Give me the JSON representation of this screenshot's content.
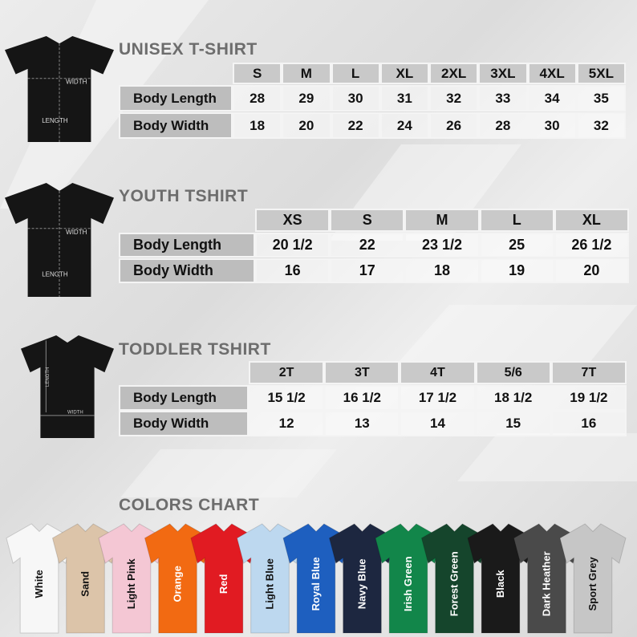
{
  "sections": [
    {
      "title": "UNISEX T-SHIRT",
      "shirt_labels": [
        "WIDTH",
        "LENGTH"
      ],
      "sizes": [
        "S",
        "M",
        "L",
        "XL",
        "2XL",
        "3XL",
        "4XL",
        "5XL"
      ],
      "rows": [
        {
          "label": "Body Length",
          "values": [
            "28",
            "29",
            "30",
            "31",
            "32",
            "33",
            "34",
            "35"
          ]
        },
        {
          "label": "Body Width",
          "values": [
            "18",
            "20",
            "22",
            "24",
            "26",
            "28",
            "30",
            "32"
          ]
        }
      ]
    },
    {
      "title": "YOUTH TSHIRT",
      "shirt_labels": [
        "WIDTH",
        "LENGTH"
      ],
      "sizes": [
        "XS",
        "S",
        "M",
        "L",
        "XL"
      ],
      "rows": [
        {
          "label": "Body Length",
          "values": [
            "20 1/2",
            "22",
            "23 1/2",
            "25",
            "26 1/2"
          ]
        },
        {
          "label": "Body Width",
          "values": [
            "16",
            "17",
            "18",
            "19",
            "20"
          ]
        }
      ]
    },
    {
      "title": "TODDLER TSHIRT",
      "shirt_labels": [
        "WIDTH",
        "LENGTH"
      ],
      "sizes": [
        "2T",
        "3T",
        "4T",
        "5/6",
        "7T"
      ],
      "rows": [
        {
          "label": "Body Length",
          "values": [
            "15 1/2",
            "16 1/2",
            "17 1/2",
            "18 1/2",
            "19 1/2"
          ]
        },
        {
          "label": "Body Width",
          "values": [
            "12",
            "13",
            "14",
            "15",
            "16"
          ]
        }
      ]
    }
  ],
  "colors": {
    "title": "COLORS CHART",
    "items": [
      {
        "name": "White",
        "color": "#f7f7f7"
      },
      {
        "name": "Sand",
        "color": "#dcc4a9"
      },
      {
        "name": "Light Pink",
        "color": "#f4c7d4"
      },
      {
        "name": "Orange",
        "color": "#f26a12"
      },
      {
        "name": "Red",
        "color": "#e11b22"
      },
      {
        "name": "Light Blue",
        "color": "#bdd8ef"
      },
      {
        "name": "Royal Blue",
        "color": "#1e5fbf"
      },
      {
        "name": "Navy Blue",
        "color": "#1d2740"
      },
      {
        "name": "Irish Green",
        "color": "#12864a"
      },
      {
        "name": "Forest Green",
        "color": "#15452c"
      },
      {
        "name": "Black",
        "color": "#1a1a1a"
      },
      {
        "name": "Dark Heather",
        "color": "#4a4a4a"
      },
      {
        "name": "Sport Grey",
        "color": "#c6c6c6"
      }
    ]
  }
}
